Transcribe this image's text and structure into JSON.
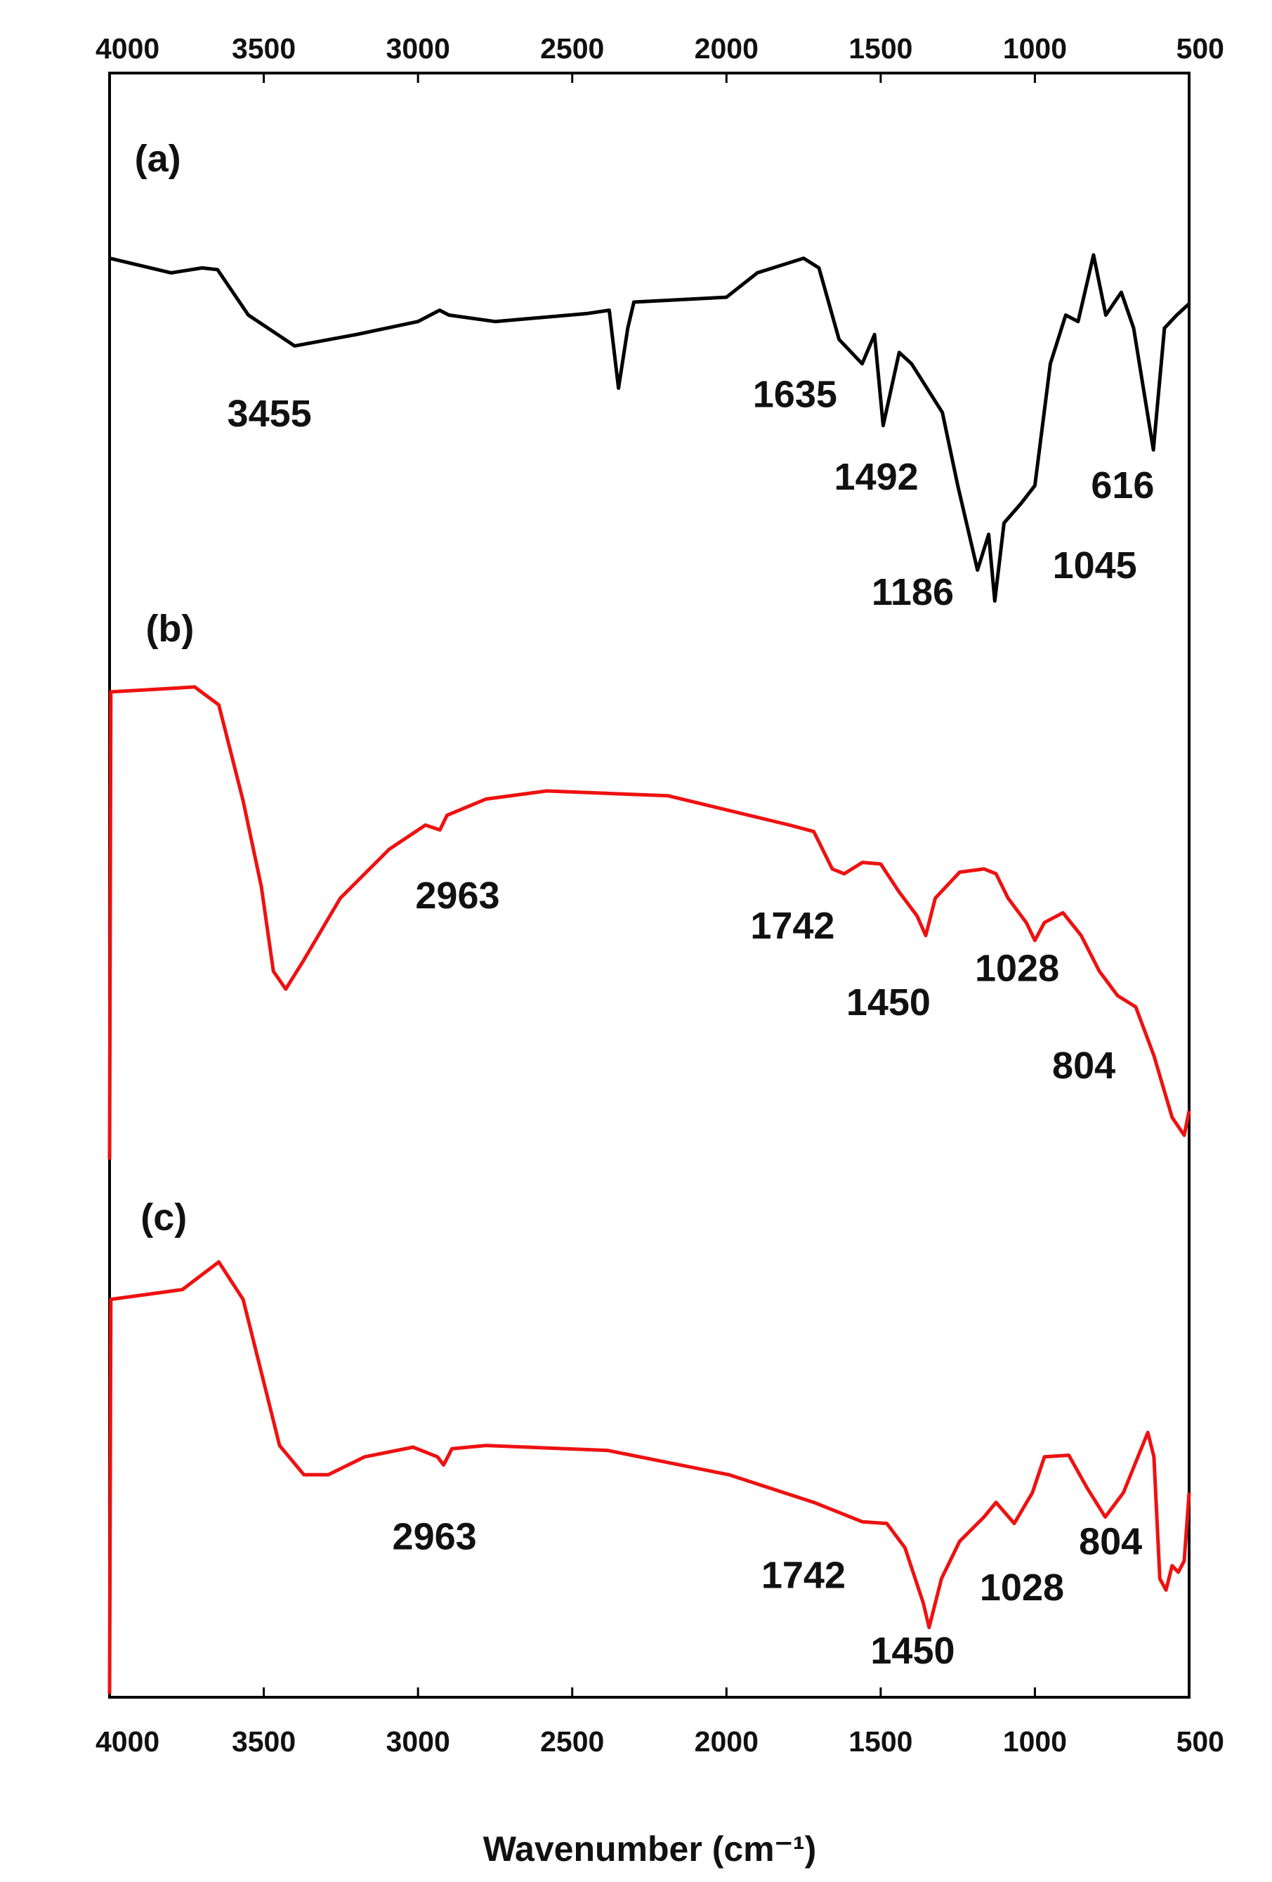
{
  "chart_data": {
    "type": "line",
    "x_label": "Wavenumber (cm⁻¹)",
    "xlim": [
      4000,
      500
    ],
    "xticks": [
      4000,
      3500,
      3000,
      2500,
      2000,
      1500,
      1000,
      500
    ],
    "ylim": [
      0,
      100
    ],
    "series": [
      {
        "name": "(a)",
        "color": "#000000",
        "x": [
          4000,
          3800,
          3700,
          3650,
          3550,
          3400,
          3200,
          3000,
          2930,
          2900,
          2750,
          2450,
          2380,
          2350,
          2320,
          2300,
          2000,
          1900,
          1750,
          1700,
          1635,
          1560,
          1520,
          1492,
          1440,
          1400,
          1300,
          1250,
          1186,
          1150,
          1130,
          1100,
          1045,
          1000,
          950,
          900,
          860,
          810,
          770,
          720,
          680,
          616,
          580,
          540,
          500
        ],
        "values": [
          88.6,
          87.7,
          88.0,
          87.9,
          85.1,
          83.2,
          83.9,
          84.7,
          85.4,
          85.1,
          84.7,
          85.2,
          85.4,
          80.6,
          84.3,
          85.9,
          86.2,
          87.7,
          88.6,
          88.0,
          83.6,
          82.1,
          83.9,
          78.3,
          82.8,
          82.1,
          79.1,
          74.6,
          69.4,
          71.6,
          67.5,
          72.3,
          73.5,
          74.6,
          82.1,
          85.1,
          84.7,
          88.8,
          85.1,
          86.5,
          84.3,
          76.8,
          84.3,
          85.1,
          85.8
        ],
        "annotations": [
          "3455",
          "1635",
          "1492",
          "616",
          "1186",
          "1045"
        ]
      },
      {
        "name": "(b)",
        "color": "#ee1111",
        "x": [
          4000,
          3996,
          3724,
          3646,
          3567,
          3508,
          3469,
          3429,
          3370,
          3252,
          3094,
          2976,
          2929,
          2906,
          2780,
          2583,
          2189,
          1795,
          1717,
          1657,
          1618,
          1559,
          1500,
          1441,
          1382,
          1354,
          1323,
          1244,
          1165,
          1126,
          1087,
          1028,
          1000,
          969,
          909,
          850,
          791,
          732,
          673,
          614,
          555,
          516,
          500
        ],
        "values": [
          33.1,
          61.9,
          62.2,
          61.1,
          55.2,
          49.9,
          44.7,
          43.6,
          45.4,
          49.2,
          52.2,
          53.7,
          53.4,
          54.3,
          55.3,
          55.8,
          55.5,
          53.7,
          53.3,
          51.0,
          50.7,
          51.4,
          51.3,
          49.6,
          48.1,
          46.9,
          49.2,
          50.8,
          51.0,
          50.7,
          49.2,
          47.7,
          46.6,
          47.7,
          48.3,
          46.9,
          44.7,
          43.2,
          42.5,
          39.5,
          35.7,
          34.6,
          36.1
        ],
        "annotations": [
          "2963",
          "1742",
          "1450",
          "1028",
          "804"
        ]
      },
      {
        "name": "(c)",
        "color": "#ee1111",
        "x": [
          4000,
          3996,
          3764,
          3646,
          3567,
          3508,
          3449,
          3370,
          3291,
          3173,
          3016,
          2937,
          2917,
          2890,
          2780,
          2386,
          1992,
          1717,
          1638,
          1559,
          1480,
          1421,
          1362,
          1343,
          1303,
          1244,
          1165,
          1126,
          1067,
          1008,
          969,
          890,
          831,
          772,
          713,
          634,
          614,
          595,
          575,
          555,
          535,
          516,
          500
        ],
        "values": [
          0.2,
          24.5,
          25.1,
          26.8,
          24.5,
          20.0,
          15.5,
          13.7,
          13.7,
          14.8,
          15.4,
          14.8,
          14.3,
          15.3,
          15.5,
          15.2,
          13.7,
          12.0,
          11.4,
          10.8,
          10.7,
          9.2,
          5.8,
          4.3,
          7.3,
          9.6,
          11.1,
          12.0,
          10.7,
          12.6,
          14.8,
          14.9,
          12.9,
          11.1,
          12.6,
          16.3,
          14.8,
          7.3,
          6.6,
          8.1,
          7.7,
          8.4,
          12.6
        ],
        "annotations": [
          "2963",
          "1742",
          "1450",
          "1028",
          "804"
        ]
      }
    ]
  }
}
